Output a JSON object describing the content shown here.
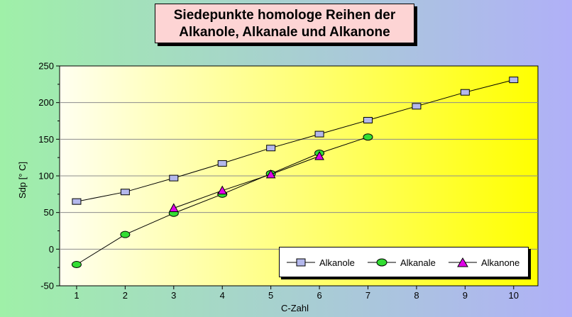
{
  "title": {
    "line1": "Siedepunkte homologe Reihen der",
    "line2": "Alkanole, Alkanale und Alkanone"
  },
  "colors": {
    "background_left": "#9ff0a8",
    "background_right": "#b0b0f8",
    "plot_left": "#fffff0",
    "plot_right": "#ffff00",
    "alkanole": "#b4b8ec",
    "alkanale": "#33dd33",
    "alkanone": "#e000e8"
  },
  "chart_data": {
    "type": "line",
    "title": "Siedepunkte homologe Reihen der Alkanole, Alkanale und Alkanone",
    "xlabel": "C-Zahl",
    "ylabel": "Sdp [° C]",
    "xlim": [
      0.65,
      10.5
    ],
    "ylim": [
      -50,
      250
    ],
    "xticks": [
      1,
      2,
      3,
      4,
      5,
      6,
      7,
      8,
      9,
      10
    ],
    "yticks": [
      -50,
      0,
      50,
      100,
      150,
      200,
      250
    ],
    "grid": true,
    "legend_position": "bottom-right",
    "series": [
      {
        "name": "Alkanole",
        "marker": "square",
        "x": [
          1,
          2,
          3,
          4,
          5,
          6,
          7,
          8,
          9,
          10
        ],
        "y": [
          65,
          78,
          97,
          117,
          138,
          157,
          176,
          195,
          214,
          231
        ]
      },
      {
        "name": "Alkanale",
        "marker": "circle",
        "x": [
          1,
          2,
          3,
          4,
          5,
          6,
          7
        ],
        "y": [
          -21,
          20,
          49,
          75,
          103,
          131,
          153
        ]
      },
      {
        "name": "Alkanone",
        "marker": "triangle",
        "x": [
          3,
          4,
          5,
          6
        ],
        "y": [
          56,
          80,
          102,
          127
        ]
      }
    ]
  }
}
